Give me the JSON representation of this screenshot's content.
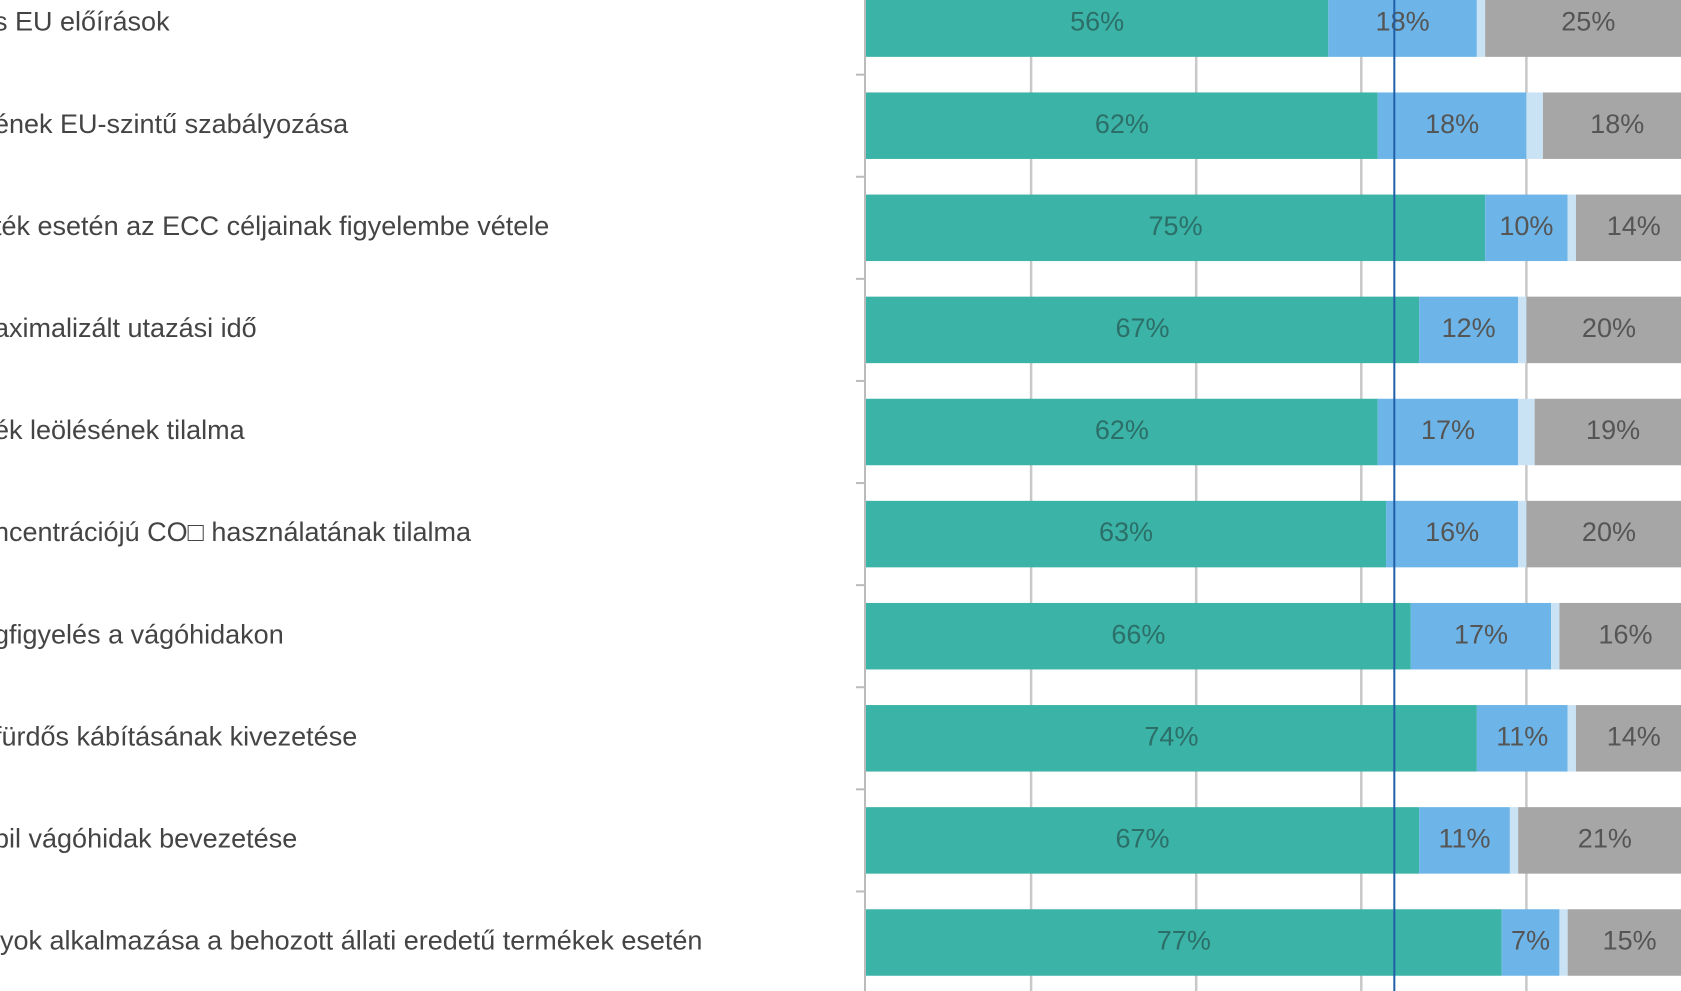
{
  "chart_data": {
    "type": "bar",
    "orientation": "horizontal",
    "stacked": true,
    "categories": [
      "s EU előírások",
      "ének EU-szintű szabályozása",
      "ték esetén az ECC céljainak figyelembe vétele",
      "aximalizált utazási idő",
      "ék leölésének tilalma",
      "ncentrációjú CO□ használatának tilalma",
      "gfigyelés a vágóhidakon",
      "fürdős kábításának kivezetése",
      "bil vágóhidak bevezetése",
      "lyok alkalmazása a behozott állati eredetű termékek esetén"
    ],
    "series": [
      {
        "color": "#3bb3a7",
        "values": [
          56,
          62,
          75,
          67,
          62,
          63,
          66,
          74,
          67,
          77
        ],
        "value_labels": [
          "56%",
          "62%",
          "75%",
          "67%",
          "62%",
          "63%",
          "66%",
          "74%",
          "67%",
          "77%"
        ]
      },
      {
        "color": "#6db5e8",
        "values": [
          18,
          18,
          10,
          12,
          17,
          16,
          17,
          11,
          11,
          7
        ],
        "value_labels": [
          "18%",
          "18%",
          "10%",
          "12%",
          "17%",
          "16%",
          "17%",
          "11%",
          "11%",
          "7%"
        ]
      },
      {
        "color": "#c9e3f5",
        "values": [
          1,
          2,
          1,
          1,
          2,
          1,
          1,
          1,
          1,
          1
        ]
      },
      {
        "color": "#a6a6a6",
        "values": [
          25,
          18,
          14,
          20,
          19,
          20,
          16,
          14,
          21,
          15
        ],
        "value_labels": [
          "25%",
          "18%",
          "14%",
          "20%",
          "19%",
          "20%",
          "16%",
          "14%",
          "21%",
          "15%"
        ]
      }
    ],
    "xlim": [
      0,
      100
    ],
    "xticks": [
      20,
      40,
      60,
      80
    ],
    "grid": true,
    "reference_line": {
      "value": 64,
      "color": "#1f5fa8"
    }
  }
}
